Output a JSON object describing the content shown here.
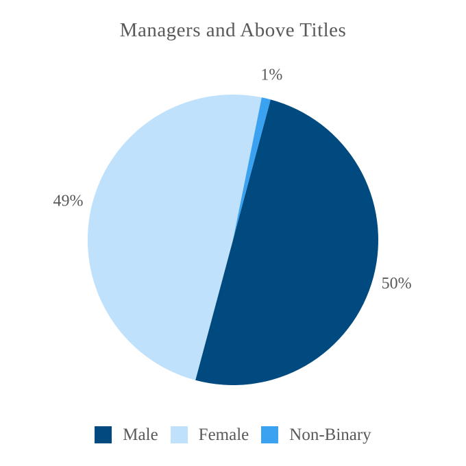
{
  "chart_data": {
    "type": "pie",
    "title": "Managers and Above Titles",
    "slices": [
      {
        "name": "Male",
        "value": 50,
        "label": "50%",
        "color": "#004a7f"
      },
      {
        "name": "Female",
        "value": 49,
        "label": "49%",
        "color": "#bfe1fb"
      },
      {
        "name": "Non-Binary",
        "value": 1,
        "label": "1%",
        "color": "#3ba1f1"
      }
    ],
    "start_angle_deg": 15,
    "direction": "clockwise",
    "data_labels": "outside",
    "legend_position": "bottom",
    "background_color": "#ffffff",
    "text_color": "#595959"
  }
}
